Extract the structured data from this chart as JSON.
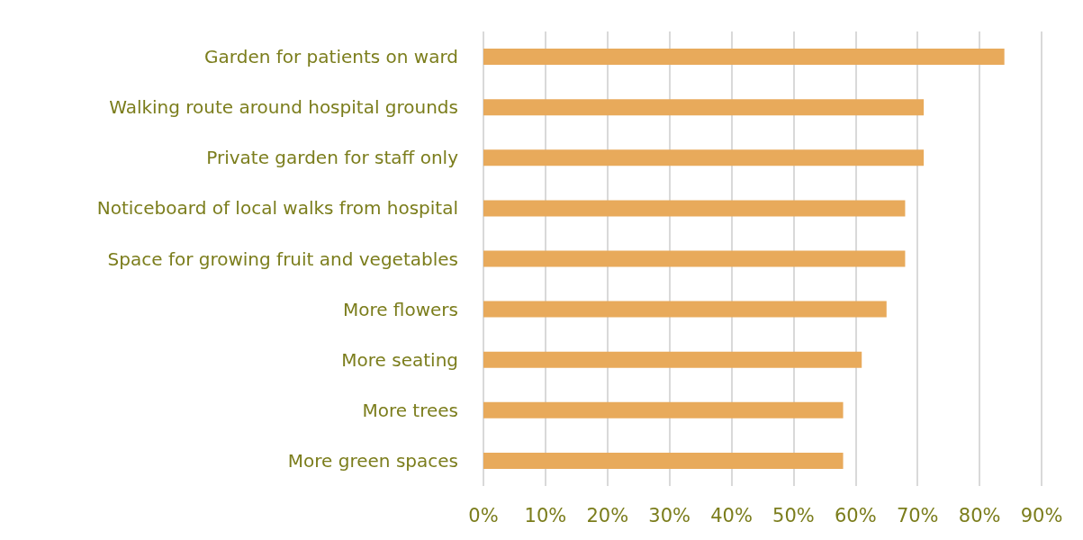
{
  "chart_data": {
    "type": "bar",
    "orientation": "horizontal",
    "categories": [
      "Garden for patients on ward",
      "Walking route around hospital grounds",
      "Private garden for staff only",
      "Noticeboard of local walks from hospital",
      "Space for growing fruit and vegetables",
      "More flowers",
      "More seating",
      "More trees",
      "More green spaces"
    ],
    "values": [
      84,
      71,
      71,
      68,
      68,
      65,
      61,
      58,
      58
    ],
    "color": "#e8aa5b",
    "xlim": [
      0,
      90
    ],
    "xticks": [
      {
        "value": 0,
        "label": "0%"
      },
      {
        "value": 10,
        "label": "10%"
      },
      {
        "value": 20,
        "label": "20%"
      },
      {
        "value": 30,
        "label": "30%"
      },
      {
        "value": 40,
        "label": "40%"
      },
      {
        "value": 50,
        "label": "50%"
      },
      {
        "value": 60,
        "label": "60%"
      },
      {
        "value": 70,
        "label": "70%"
      },
      {
        "value": 80,
        "label": "80%"
      },
      {
        "value": 90,
        "label": "90%"
      }
    ],
    "grid": "x"
  }
}
